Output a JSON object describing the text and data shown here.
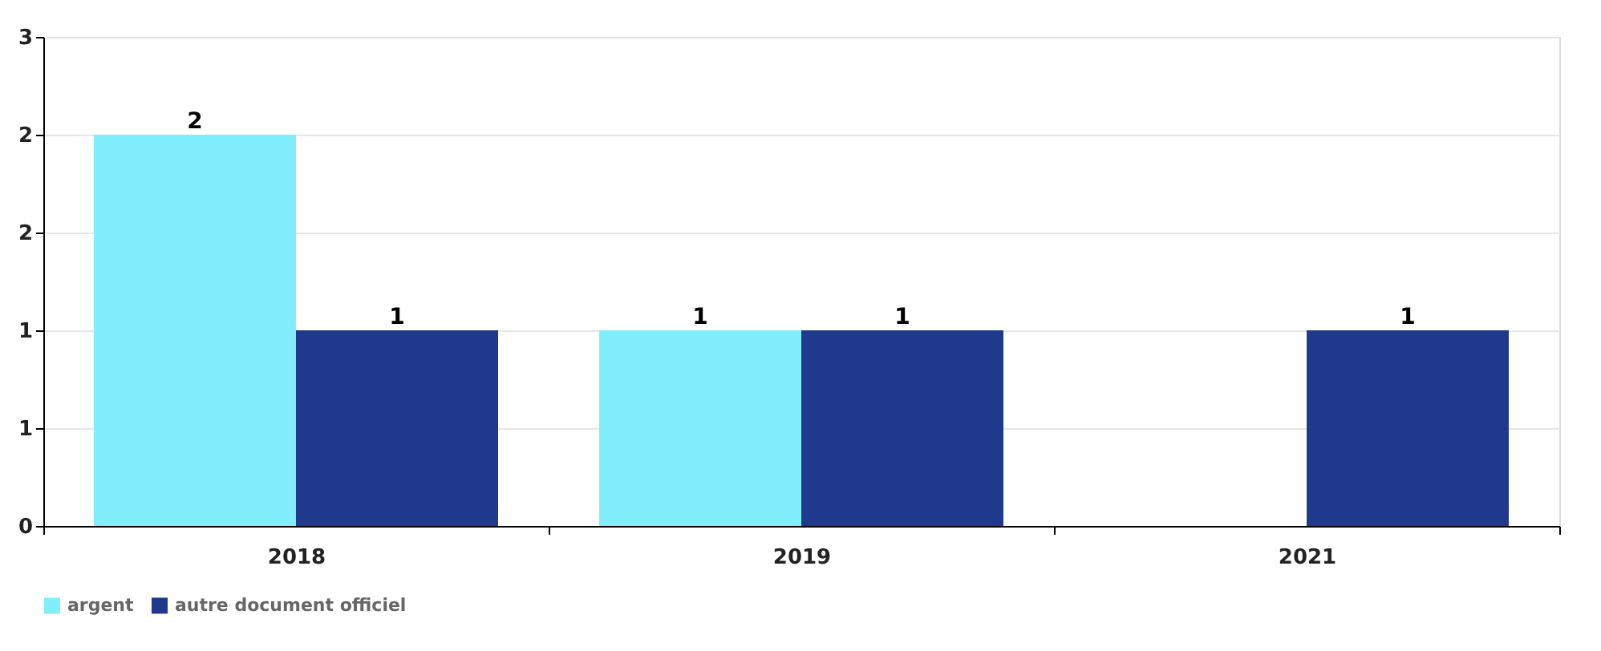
{
  "chart_data": {
    "type": "bar",
    "categories": [
      "2018",
      "2019",
      "2021"
    ],
    "series": [
      {
        "name": "argent",
        "color": "#80eefc",
        "values": [
          2,
          1,
          null
        ]
      },
      {
        "name": "autre document officiel",
        "color": "#1f3a8c",
        "values": [
          1,
          1,
          1
        ]
      }
    ],
    "ylim": [
      0,
      2.5
    ],
    "yticks": [
      0,
      {
        "value": 0.5,
        "label": "1"
      },
      1,
      {
        "value": 1.5,
        "label": "2"
      },
      2,
      {
        "value": 2.5,
        "label": "3"
      }
    ],
    "data_labels": true,
    "grid": "y",
    "legend": "bottom"
  }
}
